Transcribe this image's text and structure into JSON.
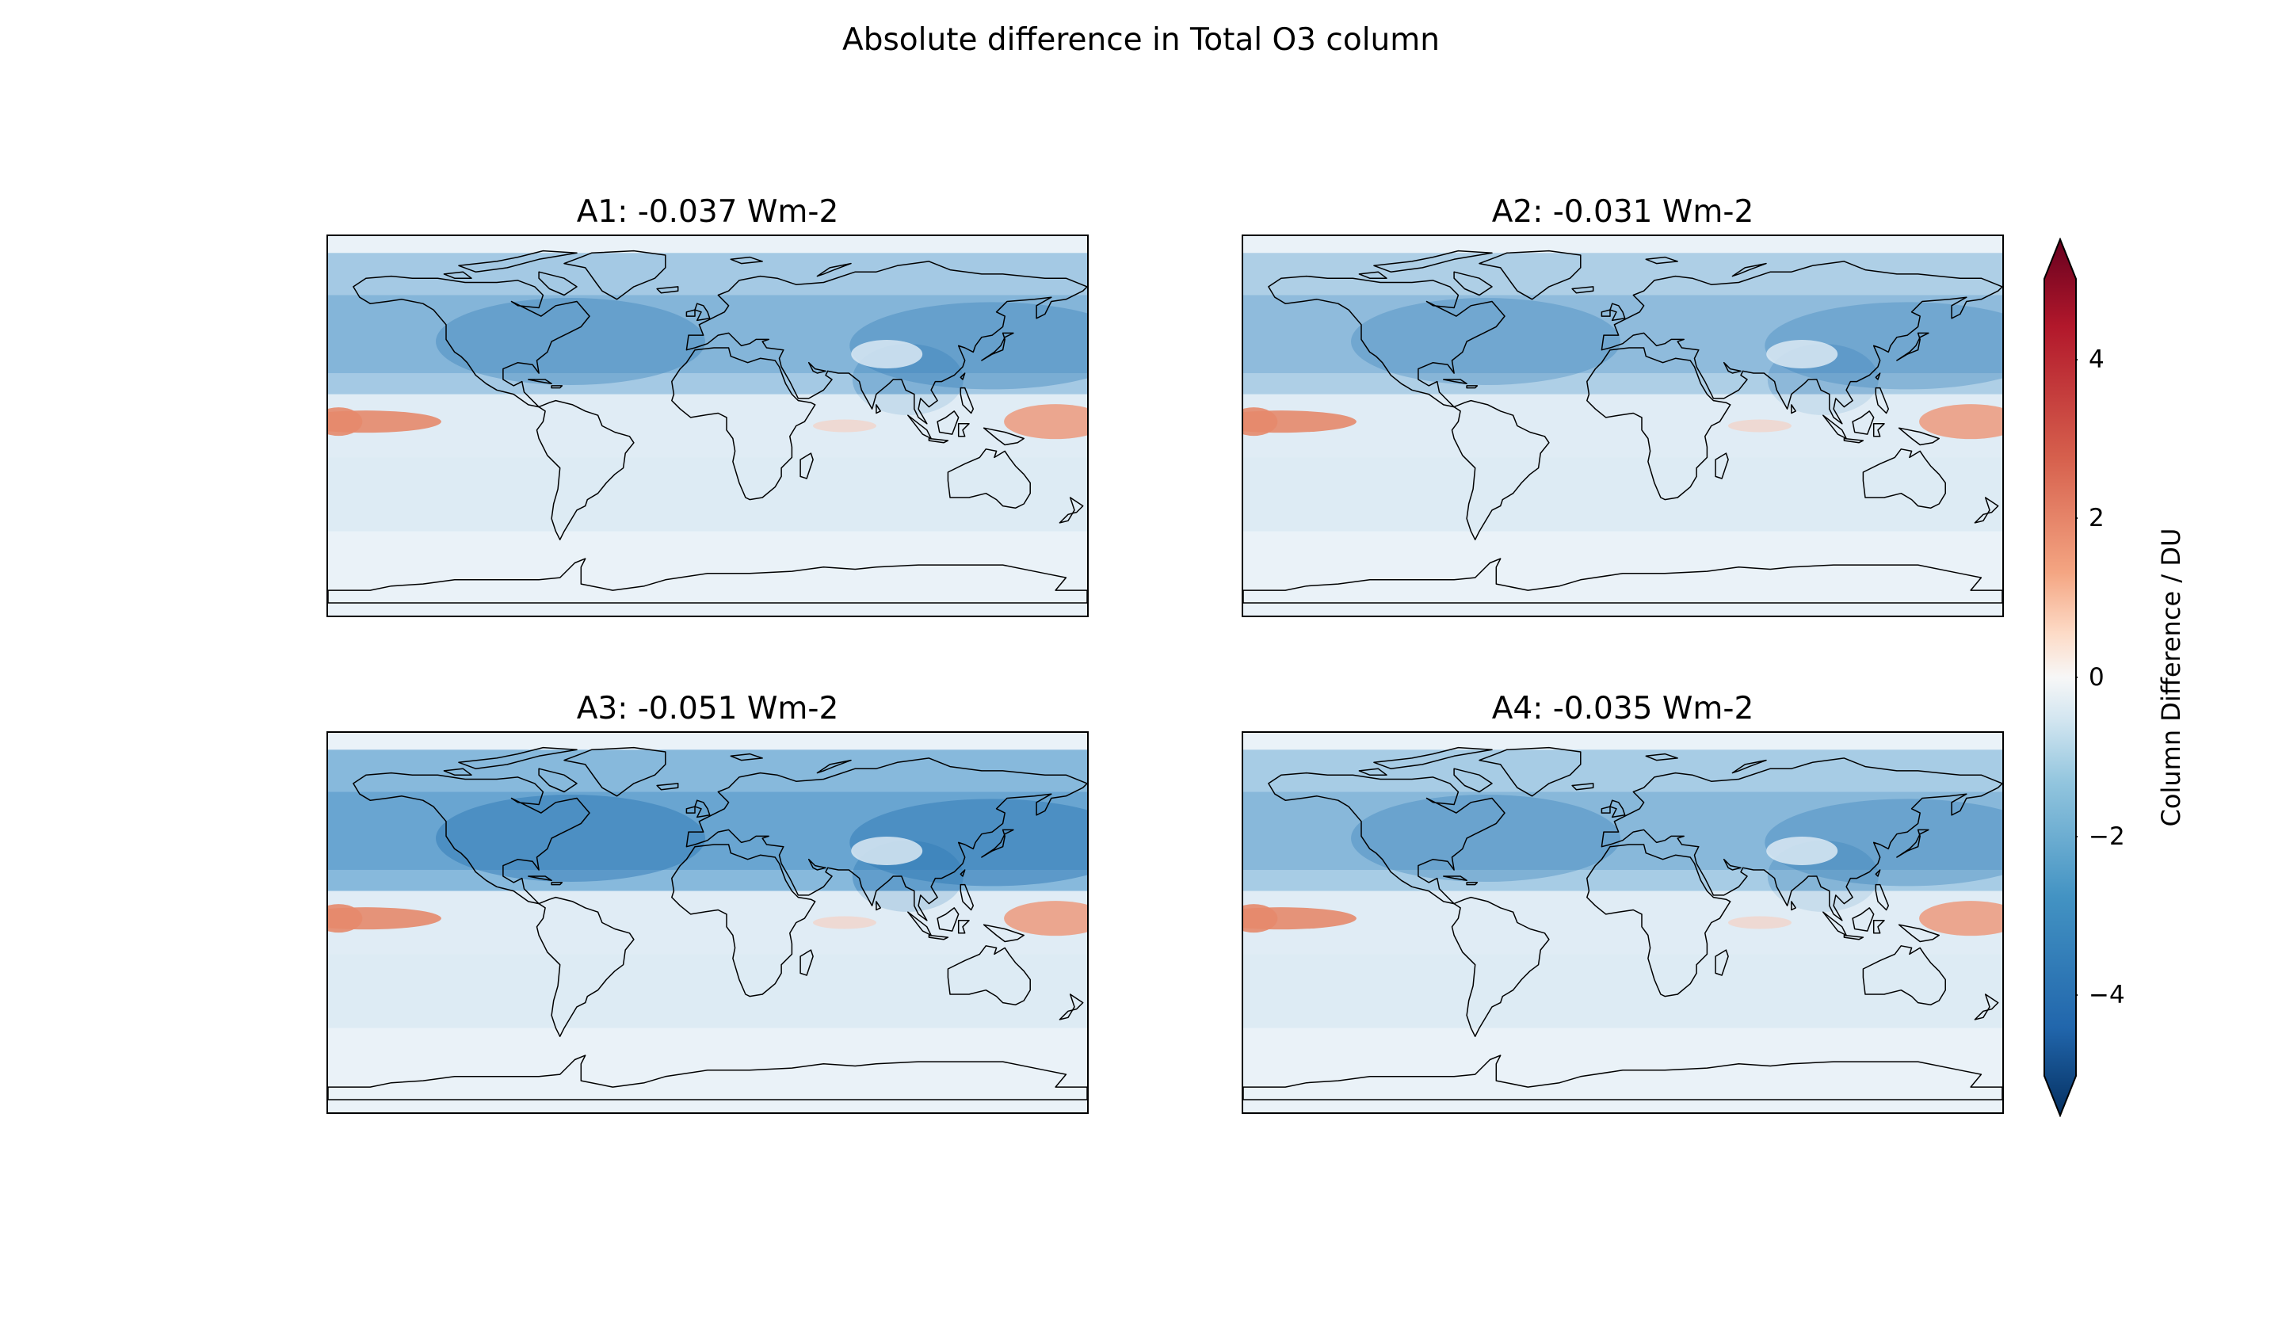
{
  "figure": {
    "title": "Absolute difference in Total O3 column"
  },
  "panels": [
    {
      "title": "A1: -0.037 Wm-2",
      "intensity": 1.0
    },
    {
      "title": "A2: -0.031 Wm-2",
      "intensity": 0.85
    },
    {
      "title": "A3: -0.051 Wm-2",
      "intensity": 1.4
    },
    {
      "title": "A4: -0.035 Wm-2",
      "intensity": 0.95
    }
  ],
  "colorbar": {
    "label": "Column Difference / DU",
    "ticks": [
      "4",
      "2",
      "0",
      "−2",
      "−4"
    ],
    "tick_values": [
      4,
      2,
      0,
      -2,
      -4
    ],
    "range": [
      -5,
      5
    ],
    "extend": "both",
    "colormap": "RdBu_r",
    "colors": {
      "max": "#67001f",
      "high": "#d6604d",
      "mid": "#f7f7f7",
      "low": "#4393c3",
      "min": "#053061"
    }
  }
}
